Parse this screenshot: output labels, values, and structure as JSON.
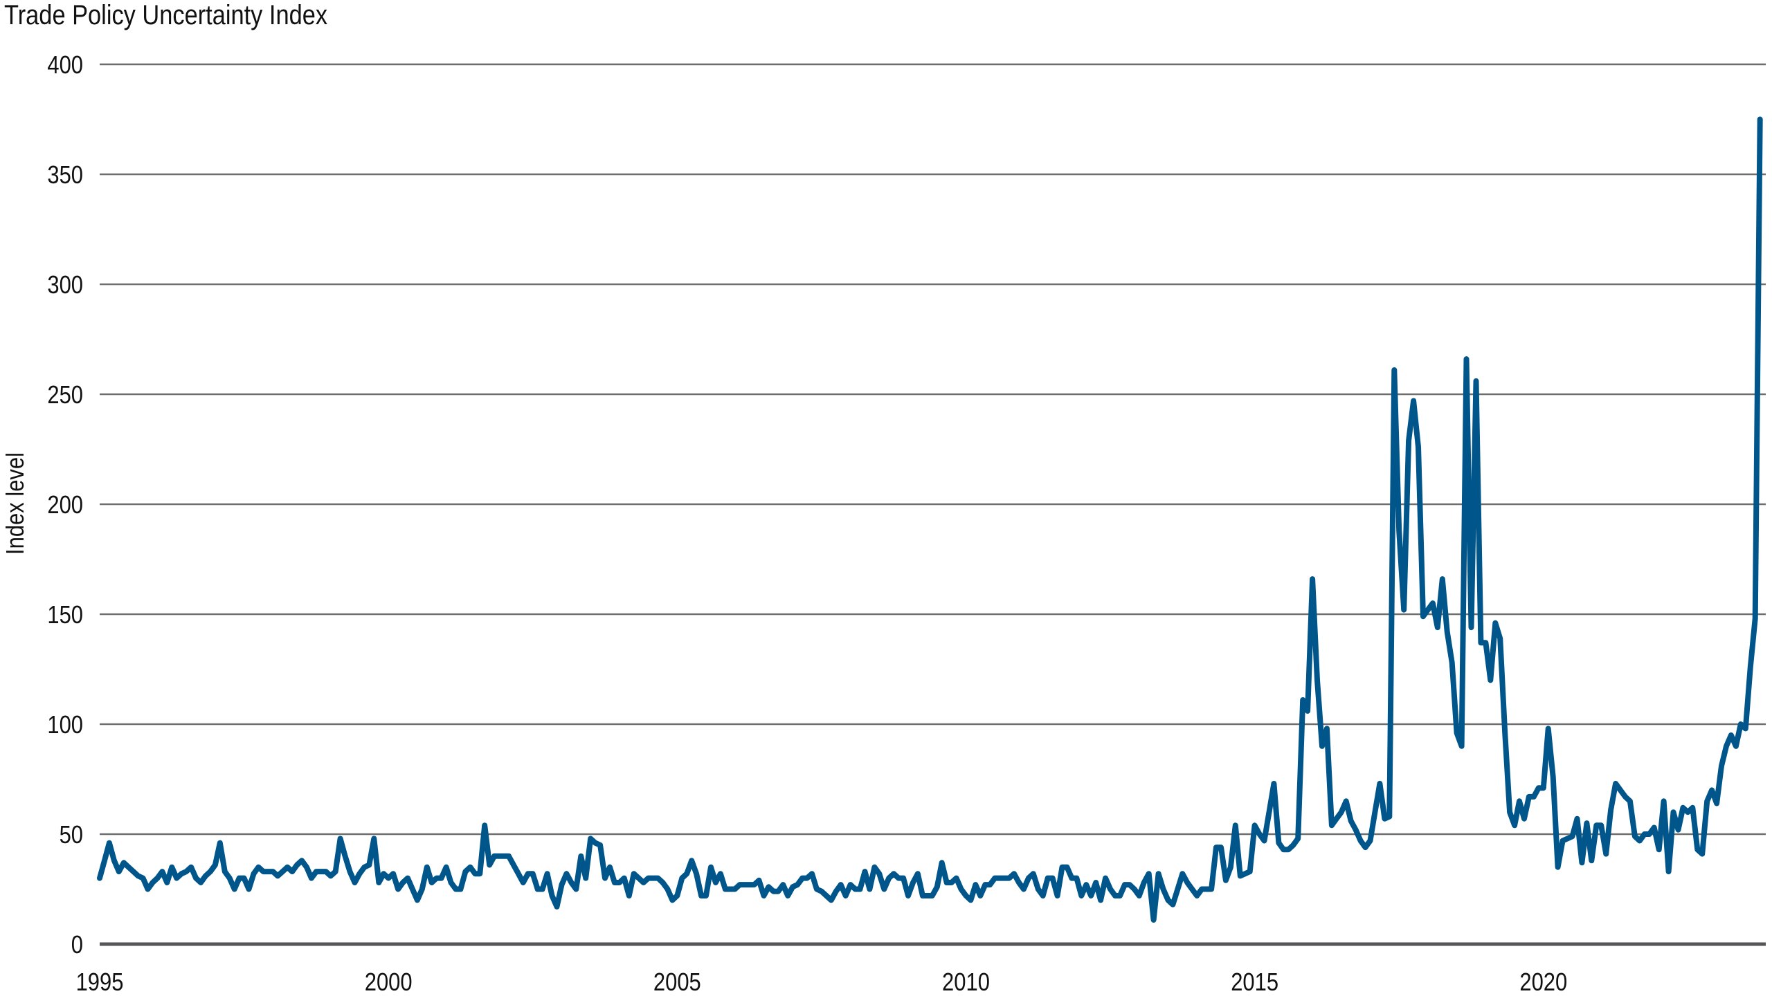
{
  "chart_data": {
    "type": "line",
    "title": "Trade Policy Uncertainty Index",
    "xlabel": "",
    "ylabel": "Index level",
    "xlim": [
      1995,
      2023.85
    ],
    "ylim": [
      0,
      400
    ],
    "yticks": [
      0,
      50,
      100,
      150,
      200,
      250,
      300,
      350,
      400
    ],
    "xticks": [
      1995,
      2000,
      2005,
      2010,
      2015,
      2020
    ],
    "grid": "horizontal",
    "legend": "none",
    "line_color": "#00568a",
    "grid_color": "#6e6e6e",
    "series": [
      {
        "start": "1995-01",
        "frequency": "monthly",
        "values": [
          30,
          38,
          46,
          38,
          33,
          37,
          35,
          33,
          31,
          30,
          25,
          28,
          30,
          33,
          28,
          35,
          30,
          32,
          33,
          35,
          30,
          28,
          31,
          33,
          36,
          46,
          33,
          30,
          25,
          30,
          30,
          25,
          32,
          35,
          33,
          33,
          33,
          31,
          33,
          35,
          33,
          36,
          38,
          35,
          30,
          33,
          33,
          33,
          31,
          33,
          48,
          40,
          33,
          28,
          32,
          35,
          36,
          48,
          28,
          32,
          30,
          32,
          25,
          28,
          30,
          25,
          20,
          25,
          35,
          28,
          30,
          30,
          35,
          28,
          25,
          25,
          33,
          35,
          32,
          32,
          54,
          36,
          40,
          40,
          40,
          40,
          36,
          32,
          28,
          32,
          32,
          25,
          25,
          32,
          22,
          17,
          27,
          32,
          28,
          25,
          40,
          30,
          48,
          46,
          45,
          30,
          35,
          28,
          28,
          30,
          22,
          32,
          30,
          28,
          30,
          30,
          30,
          28,
          25,
          20,
          22,
          30,
          32,
          38,
          32,
          22,
          22,
          35,
          28,
          32,
          25,
          25,
          25,
          27,
          27,
          27,
          27,
          29,
          22,
          26,
          24,
          24,
          27,
          22,
          26,
          27,
          30,
          30,
          32,
          25,
          24,
          22,
          20,
          24,
          27,
          22,
          27,
          25,
          25,
          33,
          25,
          35,
          32,
          25,
          30,
          32,
          30,
          30,
          22,
          28,
          32,
          22,
          22,
          22,
          26,
          37,
          28,
          28,
          30,
          25,
          22,
          20,
          27,
          22,
          27,
          27,
          30,
          30,
          30,
          30,
          32,
          28,
          25,
          30,
          32,
          25,
          22,
          30,
          30,
          22,
          35,
          35,
          30,
          30,
          22,
          27,
          22,
          28,
          20,
          30,
          25,
          22,
          22,
          27,
          27,
          25,
          22,
          28,
          32,
          11,
          32,
          25,
          20,
          18,
          25,
          32,
          28,
          25,
          22,
          25,
          25,
          25,
          44,
          44,
          29,
          35,
          54,
          31,
          32,
          33,
          54,
          50,
          47,
          60,
          73,
          46,
          43,
          43,
          45,
          48,
          111,
          106,
          166,
          120,
          90,
          98,
          54,
          57,
          60,
          65,
          56,
          52,
          47,
          44,
          47,
          60,
          73,
          57,
          58,
          261,
          188,
          152,
          229,
          247,
          226,
          149,
          152,
          155,
          144,
          166,
          142,
          128,
          96,
          90,
          266,
          144,
          256,
          137,
          137,
          120,
          146,
          139,
          96,
          60,
          54,
          65,
          57,
          67,
          67,
          71,
          71,
          98,
          76,
          35,
          47,
          48,
          49,
          57,
          37,
          55,
          38,
          54,
          54,
          41,
          61,
          73,
          70,
          67,
          65,
          49,
          47,
          50,
          50,
          53,
          43,
          65,
          33,
          60,
          52,
          62,
          60,
          62,
          43,
          41,
          65,
          70,
          64,
          81,
          90,
          95,
          90,
          100,
          98,
          126,
          148,
          375
        ]
      }
    ]
  }
}
